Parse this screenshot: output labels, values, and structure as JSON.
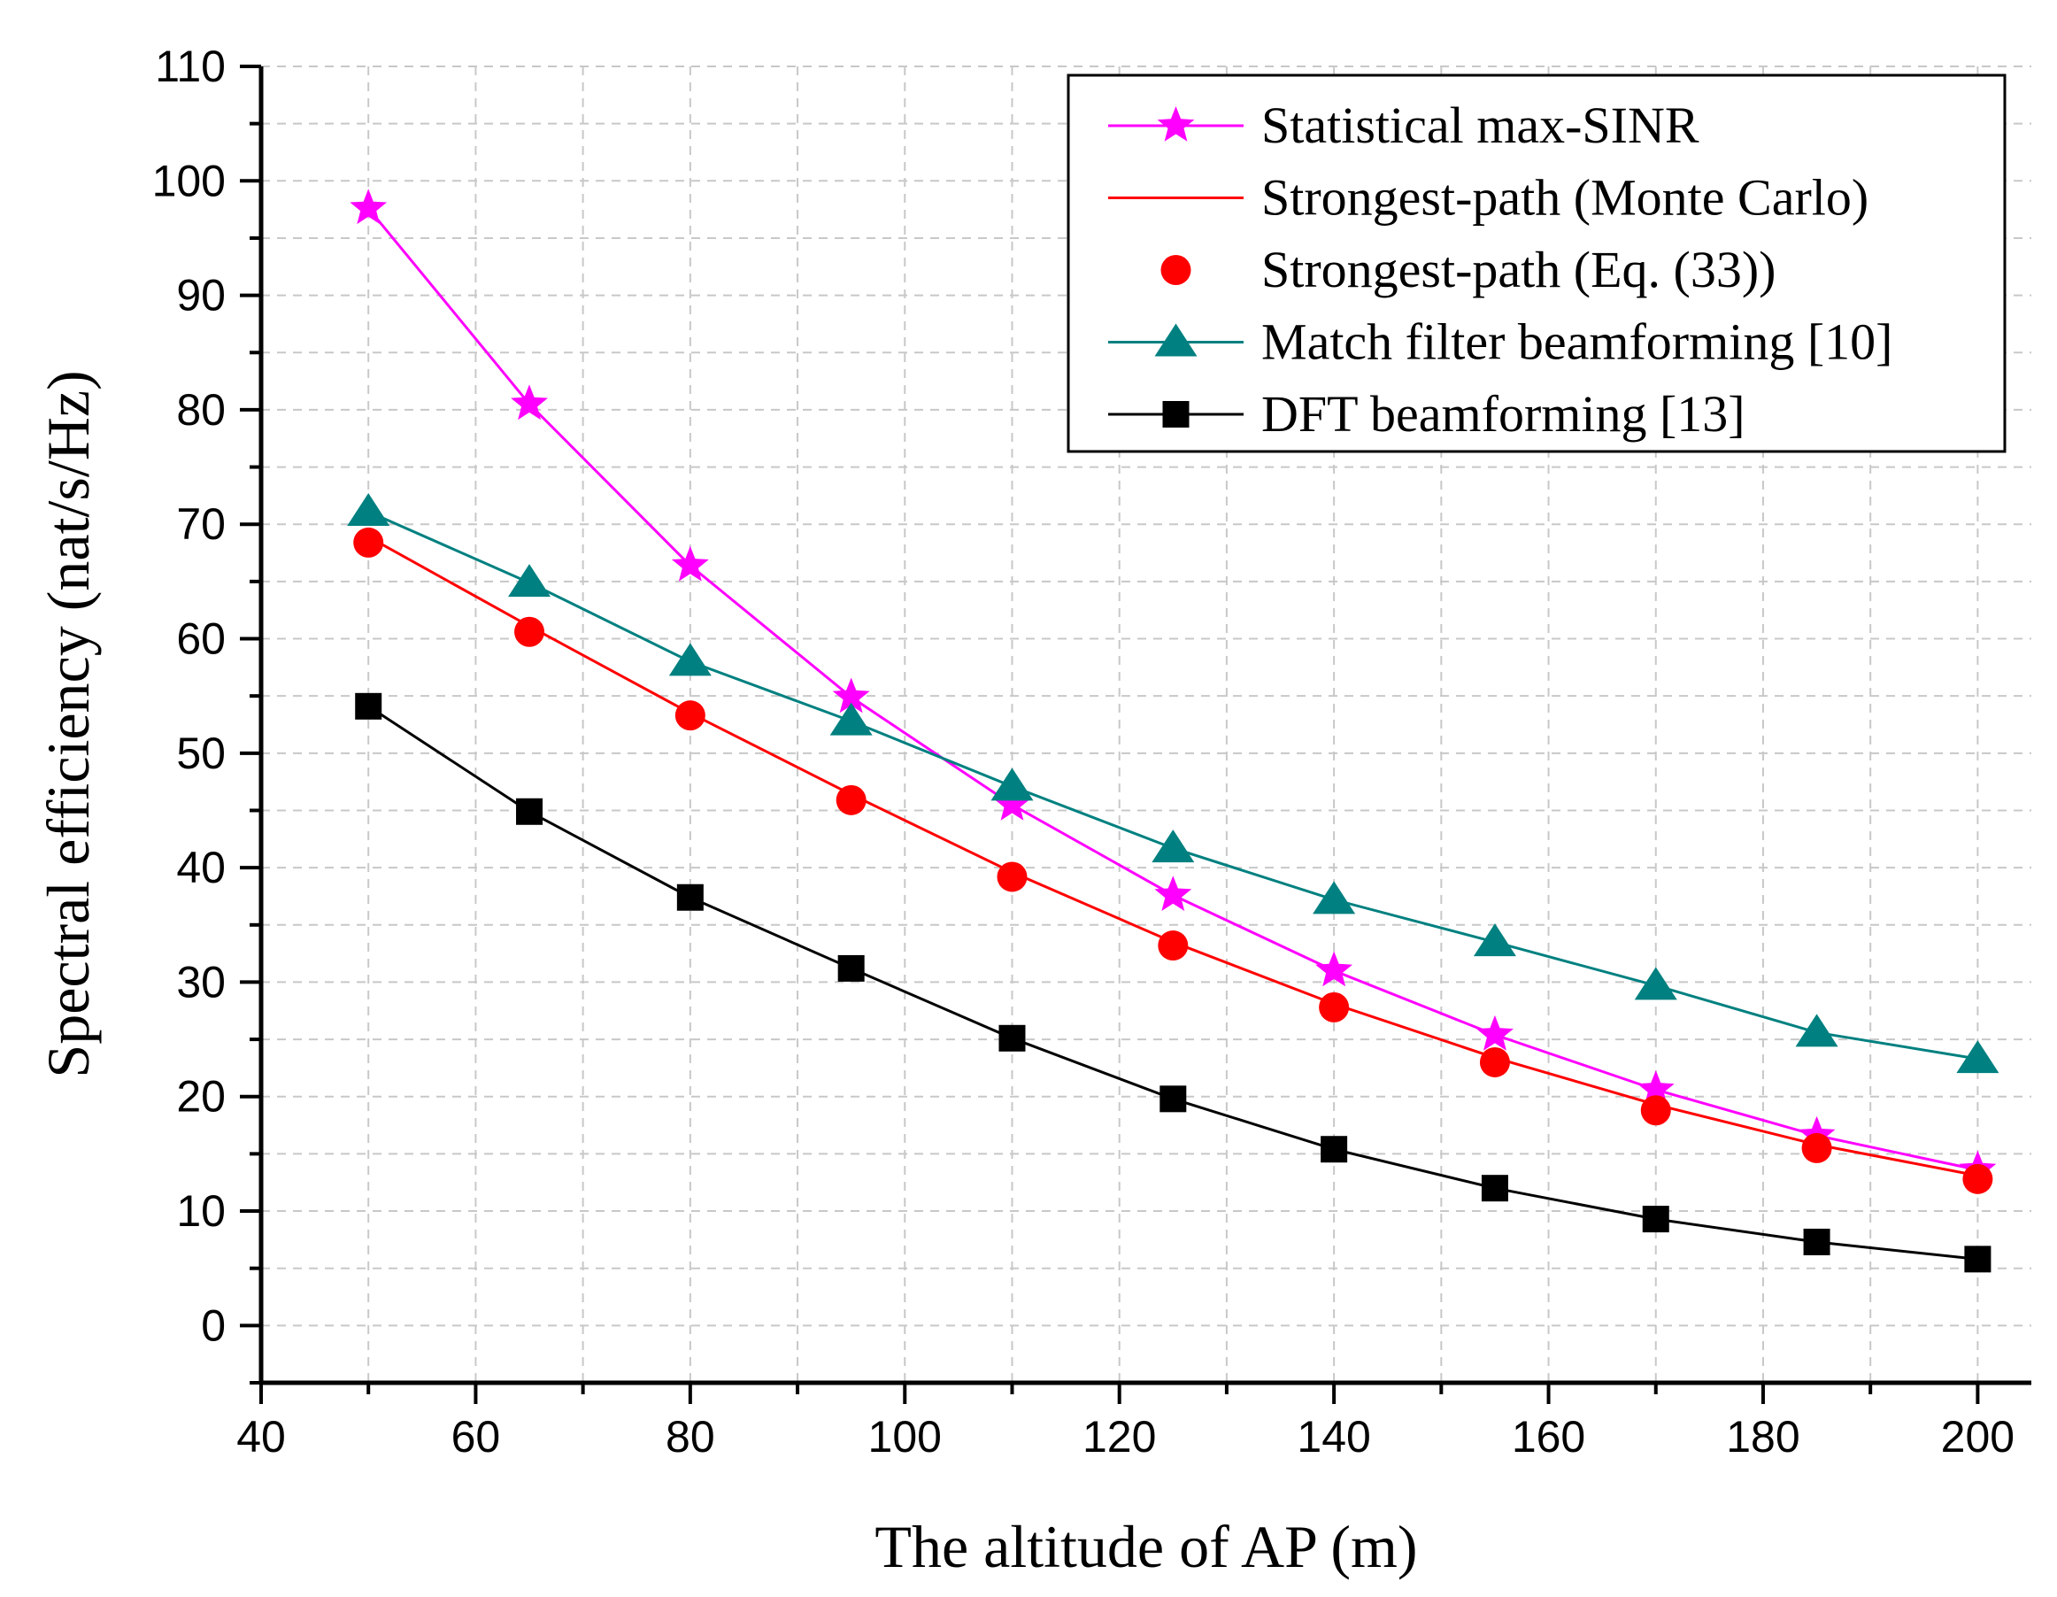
{
  "chart_data": {
    "type": "line",
    "title": "",
    "xlabel": "The altitude of AP (m)",
    "ylabel": "Spectral efficiency (nat/s/Hz)",
    "xlim": [
      40,
      205
    ],
    "ylim": [
      -5,
      110
    ],
    "xticks": [
      40,
      60,
      80,
      100,
      120,
      140,
      160,
      180,
      200
    ],
    "yticks": [
      0,
      10,
      20,
      30,
      40,
      50,
      60,
      70,
      80,
      90,
      100,
      110
    ],
    "grid": true,
    "legend_position": "top-right",
    "x": [
      50,
      65,
      80,
      95,
      110,
      125,
      140,
      155,
      170,
      185,
      200
    ],
    "series": [
      {
        "name": "Statistical max-SINR",
        "color": "#ff00ff",
        "marker": "star",
        "line": true,
        "values": [
          97.6,
          80.5,
          66.4,
          54.9,
          45.5,
          37.6,
          31.0,
          25.4,
          20.6,
          16.6,
          13.6
        ]
      },
      {
        "name": "Strongest-path (Monte Carlo)",
        "color": "#ff0000",
        "marker": "none",
        "line": true,
        "values": [
          68.9,
          61.1,
          53.5,
          46.4,
          39.6,
          33.5,
          28.1,
          23.4,
          19.3,
          15.8,
          13.1
        ]
      },
      {
        "name": "Strongest-path (Eq. (33))",
        "color": "#ff0000",
        "marker": "circle",
        "line": false,
        "values": [
          68.4,
          60.6,
          53.3,
          45.9,
          39.2,
          33.2,
          27.8,
          23.0,
          18.8,
          15.5,
          12.8
        ]
      },
      {
        "name": "Match filter beamforming [10]",
        "color": "#008080",
        "marker": "triangle",
        "line": true,
        "values": [
          71.1,
          64.9,
          58.0,
          52.8,
          47.1,
          41.7,
          37.2,
          33.5,
          29.7,
          25.6,
          23.3
        ]
      },
      {
        "name": "DFT beamforming [13]",
        "color": "#000000",
        "marker": "square",
        "line": true,
        "values": [
          54.1,
          44.9,
          37.4,
          31.2,
          25.1,
          19.8,
          15.4,
          12.0,
          9.3,
          7.3,
          5.8
        ]
      }
    ]
  }
}
